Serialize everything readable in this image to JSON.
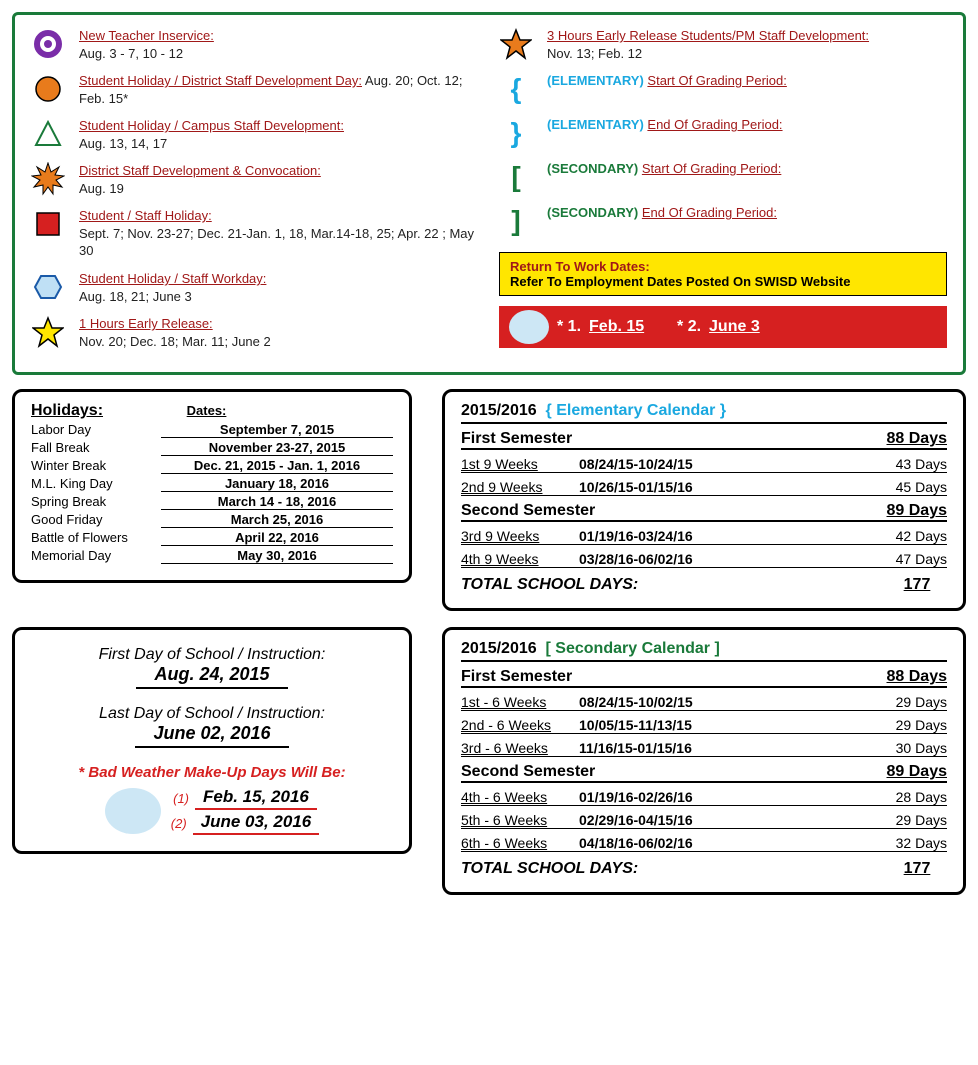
{
  "legend": {
    "left": [
      {
        "id": "new-teacher",
        "title": "New Teacher Inservice:",
        "dates": "Aug. 3 - 7, 10 - 12"
      },
      {
        "id": "dist-staff-dev",
        "title": "Student Holiday / District Staff Development Day:",
        "dates": "  Aug. 20; Oct. 12; Feb. 15*"
      },
      {
        "id": "campus-staff-dev",
        "title": "Student Holiday / Campus Staff Development:",
        "dates": "Aug. 13, 14, 17"
      },
      {
        "id": "convocation",
        "title": "District Staff Development & Convocation:",
        "dates": "Aug. 19"
      },
      {
        "id": "student-staff-holiday",
        "title": "Student / Staff Holiday:",
        "dates": "Sept. 7;  Nov. 23-27;  Dec. 21-Jan. 1, 18, Mar.14-18, 25;  Apr. 22 ;  May 30"
      },
      {
        "id": "student-holiday-workday",
        "title": "Student Holiday / Staff Workday:",
        "dates": "Aug. 18, 21; June 3"
      },
      {
        "id": "early-1hr",
        "title": "1 Hours Early Release:",
        "dates": "Nov. 20; Dec. 18; Mar. 11; June 2"
      }
    ],
    "right": [
      {
        "id": "early-3hr",
        "title": "3 Hours Early Release Students/PM Staff Development:",
        "dates": "Nov. 13; Feb. 12"
      },
      {
        "id": "elem-start",
        "prefix": "(ELEMENTARY)",
        "title": "Start Of Grading Period:",
        "brace": "{",
        "color": "#1aa8e0"
      },
      {
        "id": "elem-end",
        "prefix": "(ELEMENTARY)",
        "title": "End Of Grading Period:",
        "brace": "}",
        "color": "#1aa8e0"
      },
      {
        "id": "sec-start",
        "prefix": "(SECONDARY)",
        "title": "Start Of Grading Period:",
        "brace": "[",
        "color": "#1a7a3a"
      },
      {
        "id": "sec-end",
        "prefix": "(SECONDARY)",
        "title": "End Of Grading Period:",
        "brace": "]",
        "color": "#1a7a3a"
      }
    ],
    "yellow": {
      "line1": "Return To Work Dates:",
      "line2": "Refer To Employment Dates Posted On SWISD Website"
    },
    "makeup_bar": {
      "m1_label": "* 1.",
      "m1": "Feb. 15",
      "m2_label": "* 2.",
      "m2": "June 3"
    }
  },
  "holidays": {
    "h_label": "Holidays:",
    "d_label": "Dates:",
    "rows": [
      {
        "name": "Labor Day",
        "date": "September 7, 2015"
      },
      {
        "name": "Fall Break",
        "date": "November 23-27, 2015"
      },
      {
        "name": "Winter Break",
        "date": "Dec. 21, 2015 - Jan. 1, 2016"
      },
      {
        "name": "M.L. King Day",
        "date": "January 18, 2016"
      },
      {
        "name": "Spring Break",
        "date": "March 14 - 18, 2016"
      },
      {
        "name": "Good Friday",
        "date": "March 25, 2016"
      },
      {
        "name": "Battle of Flowers",
        "date": "April 22, 2016"
      },
      {
        "name": "Memorial Day",
        "date": "May 30, 2016"
      }
    ]
  },
  "elementary": {
    "head_year": "2015/2016",
    "head_title": "{ Elementary Calendar }",
    "sem1": {
      "title": "First Semester",
      "days": "88 Days",
      "periods": [
        {
          "lbl": "1st  9  Weeks",
          "rng": "08/24/15-10/24/15",
          "d": "43  Days"
        },
        {
          "lbl": "2nd  9  Weeks",
          "rng": "10/26/15-01/15/16",
          "d": "45  Days"
        }
      ]
    },
    "sem2": {
      "title": "Second Semester",
      "days": "89 Days",
      "periods": [
        {
          "lbl": "3rd  9  Weeks",
          "rng": "01/19/16-03/24/16",
          "d": "42  Days"
        },
        {
          "lbl": "4th  9  Weeks",
          "rng": "03/28/16-06/02/16",
          "d": "47  Days"
        }
      ]
    },
    "total_label": "TOTAL  SCHOOL  DAYS:",
    "total": "177"
  },
  "secondary": {
    "head_year": "2015/2016",
    "head_title": "[ Secondary Calendar ]",
    "sem1": {
      "title": "First Semester",
      "days": "88 Days",
      "periods": [
        {
          "lbl": "1st  - 6 Weeks",
          "rng": "08/24/15-10/02/15",
          "d": "29  Days"
        },
        {
          "lbl": "2nd - 6 Weeks",
          "rng": "10/05/15-11/13/15",
          "d": "29  Days"
        },
        {
          "lbl": "3rd - 6 Weeks",
          "rng": "11/16/15-01/15/16",
          "d": "30  Days"
        }
      ]
    },
    "sem2": {
      "title": "Second Semester",
      "days": "89 Days",
      "periods": [
        {
          "lbl": "4th - 6 Weeks",
          "rng": "01/19/16-02/26/16",
          "d": "28  Days"
        },
        {
          "lbl": "5th - 6 Weeks",
          "rng": "02/29/16-04/15/16",
          "d": "29  Days"
        },
        {
          "lbl": "6th - 6 Weeks",
          "rng": "04/18/16-06/02/16",
          "d": "32  Days"
        }
      ]
    },
    "total_label": "TOTAL  SCHOOL  DAYS:",
    "total": "177"
  },
  "first_last": {
    "first_lbl": "First Day of School / Instruction:",
    "first": "Aug. 24, 2015",
    "last_lbl": "Last Day  of School / Instruction:",
    "last": "June 02, 2016",
    "bad": "* Bad Weather Make-Up Days Will Be:",
    "m1_idx": "(1)",
    "m1": "Feb. 15, 2016",
    "m2_idx": "(2)",
    "m2": "June 03, 2016"
  },
  "colors": {
    "green": "#1a7a3a",
    "red": "#d62020",
    "darkred": "#a01818",
    "orange": "#e87b1c",
    "yellow": "#ffe600",
    "blue": "#1aa8e0",
    "purple": "#7a2da8"
  }
}
